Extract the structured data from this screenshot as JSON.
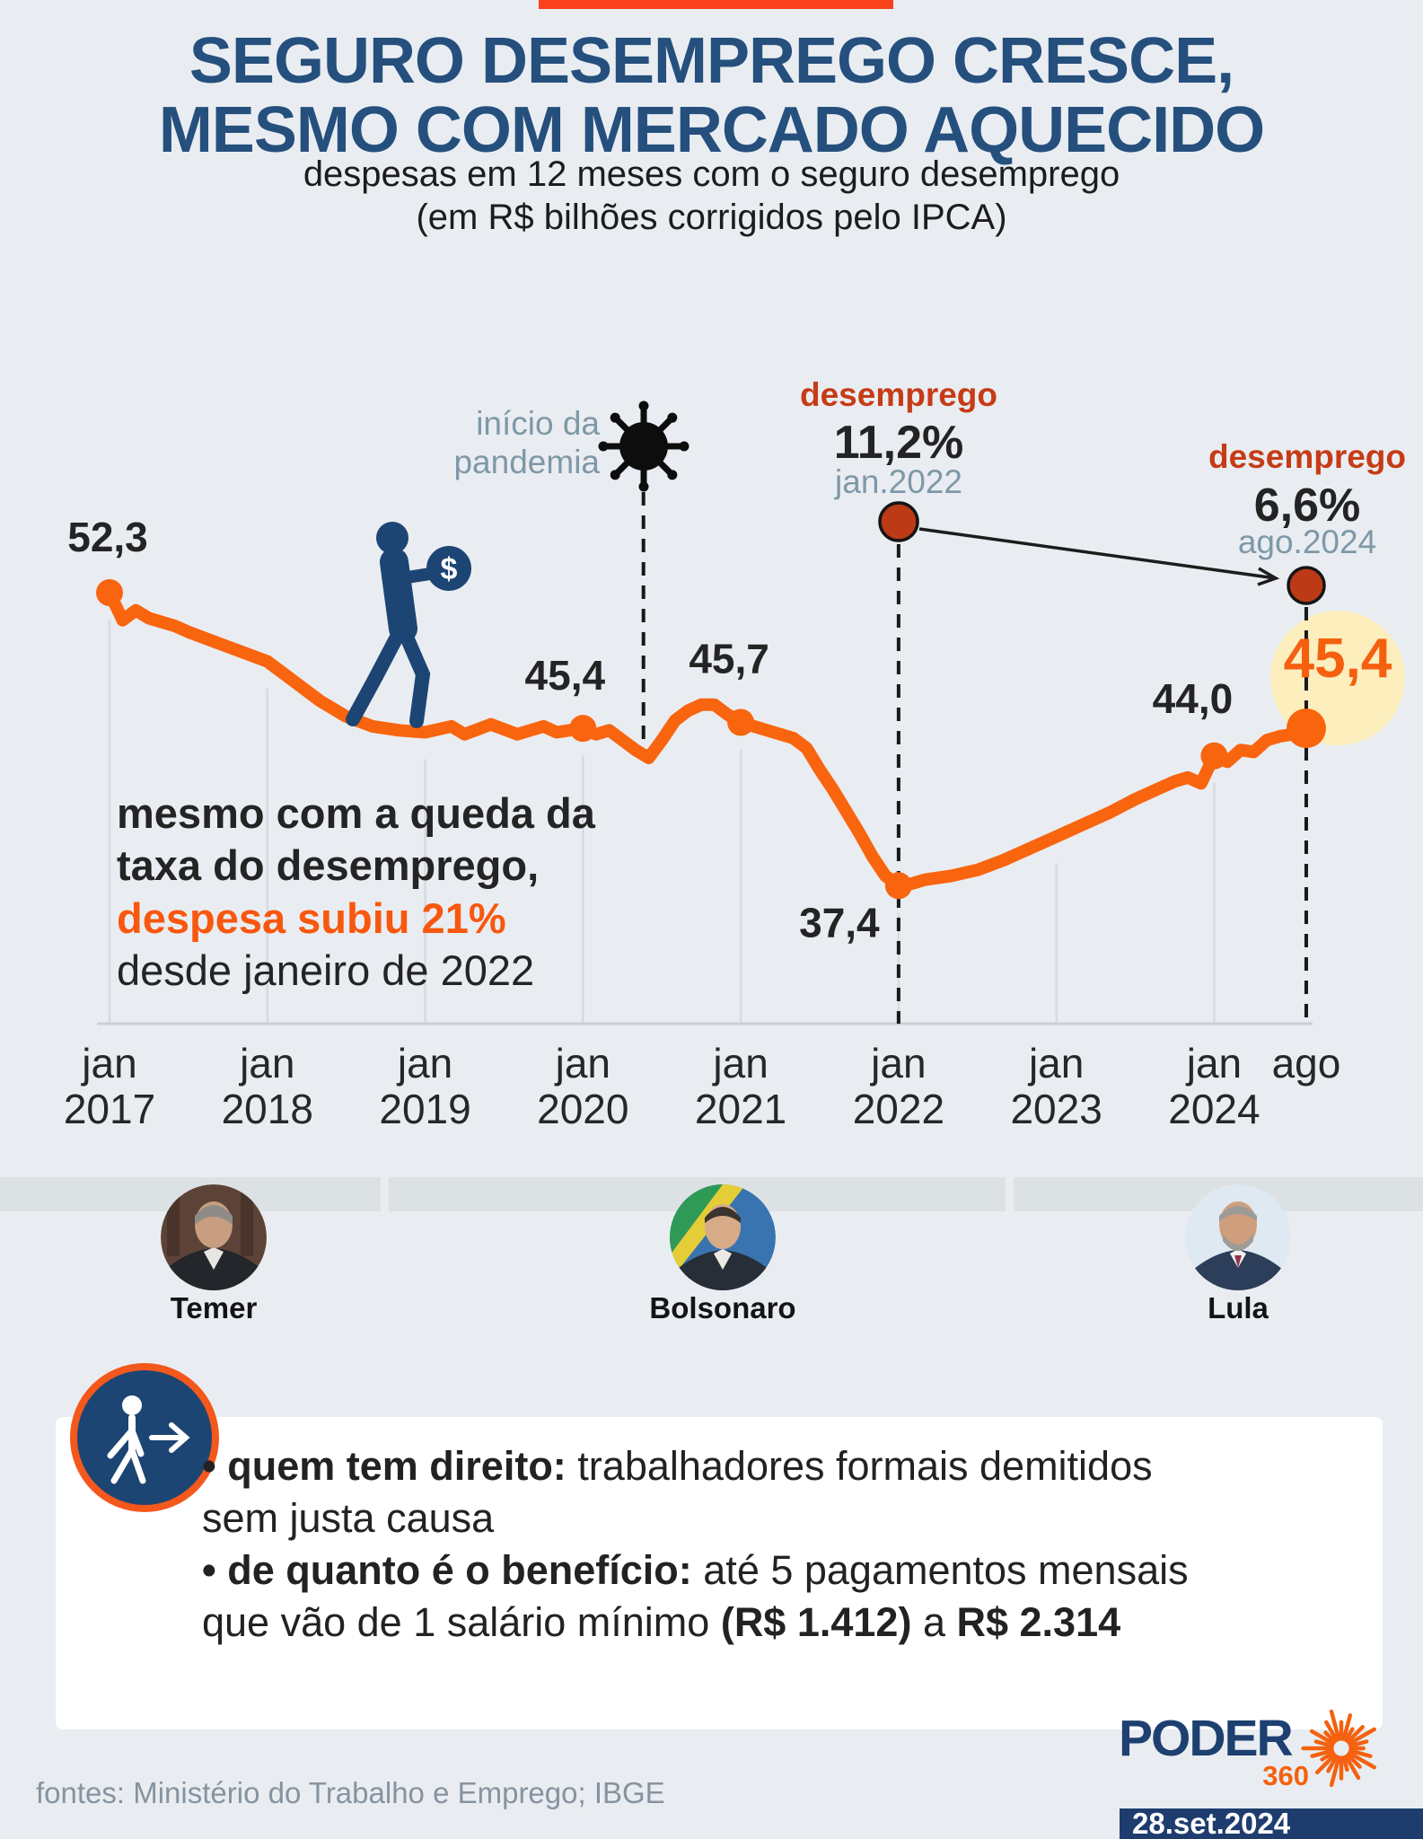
{
  "page": {
    "bg_color": "#e9edf1",
    "accent_bar_color": "#f9411c"
  },
  "header": {
    "title_line1": "SEGURO DESEMPREGO CRESCE,",
    "title_line2": "MESMO COM MERCADO AQUECIDO",
    "subtitle_line1": "despesas em 12 meses com o seguro desemprego",
    "subtitle_line2": "(em R$ bilhões corrigidos pelo IPCA)"
  },
  "chart_data": {
    "type": "line",
    "title": "despesas em 12 meses com o seguro desemprego (em R$ bilhões corrigidos pelo IPCA)",
    "ylabel": "R$ bilhões (IPCA)",
    "y_implied_range": [
      37.4,
      52.3
    ],
    "line_color": "#f9640e",
    "grid": "vertical-years",
    "x_axis_labels": [
      {
        "month": "jan",
        "year": "2017",
        "m": 0
      },
      {
        "month": "jan",
        "year": "2018",
        "m": 12
      },
      {
        "month": "jan",
        "year": "2019",
        "m": 24
      },
      {
        "month": "jan",
        "year": "2020",
        "m": 36
      },
      {
        "month": "jan",
        "year": "2021",
        "m": 48
      },
      {
        "month": "jan",
        "year": "2022",
        "m": 60
      },
      {
        "month": "jan",
        "year": "2023",
        "m": 72
      },
      {
        "month": "jan",
        "year": "2024",
        "m": 84
      },
      {
        "month": "ago",
        "year": "",
        "m": 91
      }
    ],
    "series": [
      {
        "name": "despesa em 12 meses com o seguro desemprego",
        "points": [
          [
            0,
            52.3
          ],
          [
            1,
            50.9
          ],
          [
            2,
            51.4
          ],
          [
            3,
            51.0
          ],
          [
            5,
            50.6
          ],
          [
            6,
            50.3
          ],
          [
            8,
            49.8
          ],
          [
            10,
            49.3
          ],
          [
            12,
            48.8
          ],
          [
            14,
            47.8
          ],
          [
            16,
            46.8
          ],
          [
            18,
            46.0
          ],
          [
            20,
            45.5
          ],
          [
            22,
            45.3
          ],
          [
            24,
            45.2
          ],
          [
            26,
            45.5
          ],
          [
            27,
            45.1
          ],
          [
            29,
            45.6
          ],
          [
            31,
            45.1
          ],
          [
            33,
            45.5
          ],
          [
            34,
            45.2
          ],
          [
            36,
            45.4
          ],
          [
            37,
            45.1
          ],
          [
            38,
            45.3
          ],
          [
            40,
            44.3
          ],
          [
            41,
            43.9
          ],
          [
            42,
            44.8
          ],
          [
            43,
            45.8
          ],
          [
            44,
            46.3
          ],
          [
            45,
            46.6
          ],
          [
            46,
            46.6
          ],
          [
            47,
            46.1
          ],
          [
            48,
            45.7
          ],
          [
            50,
            45.3
          ],
          [
            52,
            44.9
          ],
          [
            53,
            44.4
          ],
          [
            54,
            43.3
          ],
          [
            55,
            42.3
          ],
          [
            56,
            41.2
          ],
          [
            57,
            40.1
          ],
          [
            58,
            38.9
          ],
          [
            59,
            37.9
          ],
          [
            60,
            37.4
          ],
          [
            61,
            37.5
          ],
          [
            62,
            37.7
          ],
          [
            64,
            37.9
          ],
          [
            66,
            38.2
          ],
          [
            68,
            38.7
          ],
          [
            70,
            39.3
          ],
          [
            72,
            39.9
          ],
          [
            74,
            40.5
          ],
          [
            76,
            41.1
          ],
          [
            78,
            41.8
          ],
          [
            80,
            42.4
          ],
          [
            81,
            42.7
          ],
          [
            82,
            42.9
          ],
          [
            83,
            42.6
          ],
          [
            84,
            44.0
          ],
          [
            85,
            43.7
          ],
          [
            86,
            44.3
          ],
          [
            87,
            44.2
          ],
          [
            88,
            44.8
          ],
          [
            89,
            45.0
          ],
          [
            90,
            45.1
          ],
          [
            91,
            45.4
          ]
        ]
      }
    ],
    "labeled_points": [
      {
        "m": 0,
        "value": 52.3,
        "label": "52,3"
      },
      {
        "m": 36,
        "value": 45.4,
        "label": "45,4"
      },
      {
        "m": 48,
        "value": 45.7,
        "label": "45,7"
      },
      {
        "m": 60,
        "value": 37.4,
        "label": "37,4"
      },
      {
        "m": 84,
        "value": 44.0,
        "label": "44,0"
      },
      {
        "m": 91,
        "value": 45.4,
        "label": "45,4",
        "highlight": true
      }
    ],
    "annotations": {
      "pandemic": {
        "line1": "início da",
        "line2": "pandemia",
        "m": 40.6
      },
      "unemployment_jan2022": {
        "tag": "desemprego",
        "value": "11,2%",
        "date": "jan.2022",
        "m": 60
      },
      "unemployment_ago2024": {
        "tag": "desemprego",
        "value": "6,6%",
        "date": "ago.2024",
        "m": 91
      },
      "note_line1": "mesmo com a queda da",
      "note_line2": "taxa do desemprego,",
      "note_line3": "despesa subiu 21%",
      "note_line4": "desde janeiro de 2022",
      "coin_symbol": "$"
    }
  },
  "presidents": [
    {
      "name": "Temer"
    },
    {
      "name": "Bolsonaro"
    },
    {
      "name": "Lula"
    }
  ],
  "info_box": {
    "lines": [
      [
        {
          "t": "• quem tem direito:",
          "b": 1
        },
        {
          "t": " trabalhadores formais demitidos",
          "b": 0
        }
      ],
      [
        {
          "t": "sem justa causa",
          "b": 0
        }
      ],
      [
        {
          "t": "• de quanto é o benefício:",
          "b": 1
        },
        {
          "t": " até 5 pagamentos mensais",
          "b": 0
        }
      ],
      [
        {
          "t": "que vão de 1 salário mínimo ",
          "b": 0
        },
        {
          "t": "(R$ 1.412)",
          "b": 1
        },
        {
          "t": " a ",
          "b": 0
        },
        {
          "t": "R$ 2.314",
          "b": 1
        }
      ]
    ]
  },
  "footer": {
    "sources": "fontes: Ministério do Trabalho e Emprego; IBGE",
    "brand": "PODER",
    "brand_sub": "360",
    "date": "28.set.2024"
  }
}
